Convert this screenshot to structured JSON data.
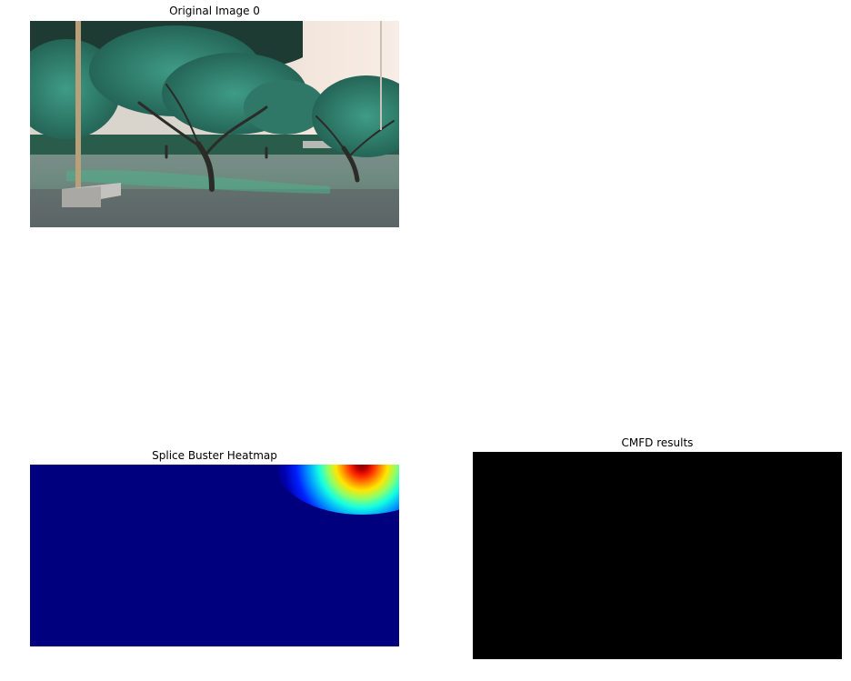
{
  "panels": [
    {
      "title": "Original Image 0",
      "content": "photo-trees-park"
    },
    {
      "title": "Splice Buster Heatmap",
      "content": "heatmap",
      "colormap": "jet",
      "background_color": "#00007f",
      "hotspot": {
        "location": "top-right",
        "peak_color": "#7f0000"
      }
    },
    {
      "title": "CMFD results",
      "content": "mask",
      "fill_color": "#000000"
    }
  ]
}
